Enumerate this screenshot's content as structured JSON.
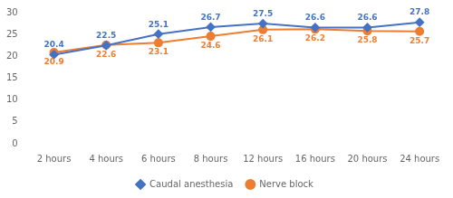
{
  "chart_data": {
    "type": "line",
    "categories": [
      "2 hours",
      "4 hours",
      "6 hours",
      "8 hours",
      "12 hours",
      "16 hours",
      "20 hours",
      "24 hours"
    ],
    "series": [
      {
        "name": "Caudal anesthesia",
        "color": "#4472C4",
        "marker": "diamond",
        "values": [
          20.4,
          22.5,
          25.1,
          26.7,
          27.5,
          26.6,
          26.6,
          27.8
        ]
      },
      {
        "name": "Nerve block",
        "color": "#ED7D31",
        "marker": "circle",
        "values": [
          20.9,
          22.6,
          23.1,
          24.6,
          26.1,
          26.2,
          25.8,
          25.7
        ]
      }
    ],
    "ylim": [
      0,
      30
    ],
    "yticks": [
      0,
      5,
      10,
      15,
      20,
      25,
      30
    ],
    "grid": false,
    "legend": "bottom",
    "data_labels": true
  }
}
